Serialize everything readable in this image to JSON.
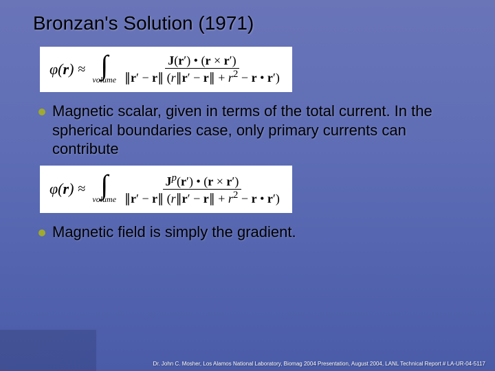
{
  "title": "Bronzan's Solution (1971)",
  "formula1": {
    "lhs": "φ(r) ≈",
    "int_label": "volume",
    "numerator": "J(r′) • (r × r′)",
    "denominator": "∥r′ − r∥ ( r ∥r′ − r∥ + r² − r • r′ )"
  },
  "bullet1": "Magnetic scalar, given in terms of the total current. In the spherical boundaries case, only primary currents can contribute",
  "formula2": {
    "lhs": "φ(r) ≈",
    "int_label": "volume",
    "numerator": "Jᵖ(r′) • (r × r′)",
    "denominator": "∥r′ − r∥ ( r ∥r′ − r∥ + r² − r • r′ )"
  },
  "bullet2": "Magnetic field is simply the gradient.",
  "footer": "Dr. John C. Mosher, Los Alamos National Laboratory,  Biomag 2004 Presentation, August 2004, LANL Technical Report # LA-UR-04-5117",
  "colors": {
    "bg_top": "#6a75b8",
    "bg_bottom": "#4a5ba8",
    "bullet": "#a0aa2e",
    "formula_bg": "#ffffff",
    "text": "#000000",
    "footer_text": "#ffffff"
  },
  "typography": {
    "title_fontsize": 28,
    "bullet_fontsize": 22,
    "formula_fontsize": 20,
    "footer_fontsize": 8
  }
}
